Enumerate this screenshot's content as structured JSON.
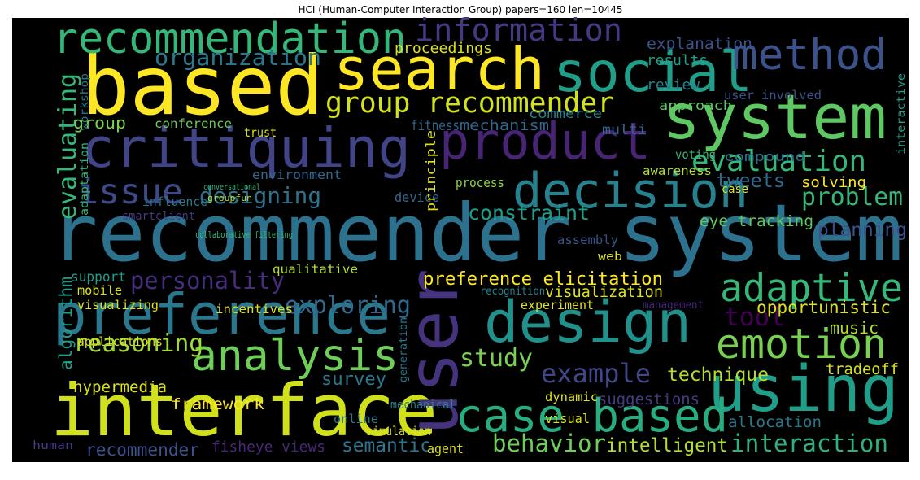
{
  "title": "HCI (Human-Computer Interaction Group) papers=160 len=10445",
  "words": [
    "recommender system",
    "based",
    "interface",
    "system",
    "user",
    "design",
    "using",
    "case based",
    "preference",
    "critiquing",
    "recommendation",
    "search",
    "social",
    "method",
    "product",
    "decision",
    "analysis",
    "emotion",
    "adaptive",
    "issue",
    "evaluation",
    "group recommender",
    "information",
    "organization",
    "evaluating",
    "designing",
    "personality",
    "exploring",
    "reasoning",
    "study",
    "example",
    "behavior",
    "intelligent",
    "interaction",
    "problem",
    "planning",
    "constraint",
    "tool",
    "tweets",
    "preference elicitation",
    "visualization",
    "technique",
    "semantic",
    "survey",
    "algorithm",
    "hypermedia",
    "framework",
    "recommender",
    "fisheye views",
    "suggestions",
    "allocation",
    "tradeoff",
    "music",
    "opportunistic",
    "eye tracking",
    "user involved",
    "results",
    "explanation",
    "review",
    "approach",
    "proceedings",
    "mechanism",
    "fitness",
    "commerce",
    "group",
    "conference",
    "trust",
    "multi",
    "voting",
    "compound",
    "solving",
    "awareness",
    "environment",
    "influence",
    "smartclient",
    "device",
    "process",
    "case",
    "assembly",
    "web",
    "qualitative",
    "support",
    "mobile",
    "visualizing",
    "incentives",
    "recognition",
    "experiment",
    "management",
    "applications",
    "dynamic",
    "visual",
    "mechanical",
    "online",
    "simulation",
    "agent",
    "human",
    "principle",
    "adaptation",
    "workshop",
    "generation",
    "interactive",
    "conversational",
    "collaborative filtering",
    "groupfun"
  ]
}
